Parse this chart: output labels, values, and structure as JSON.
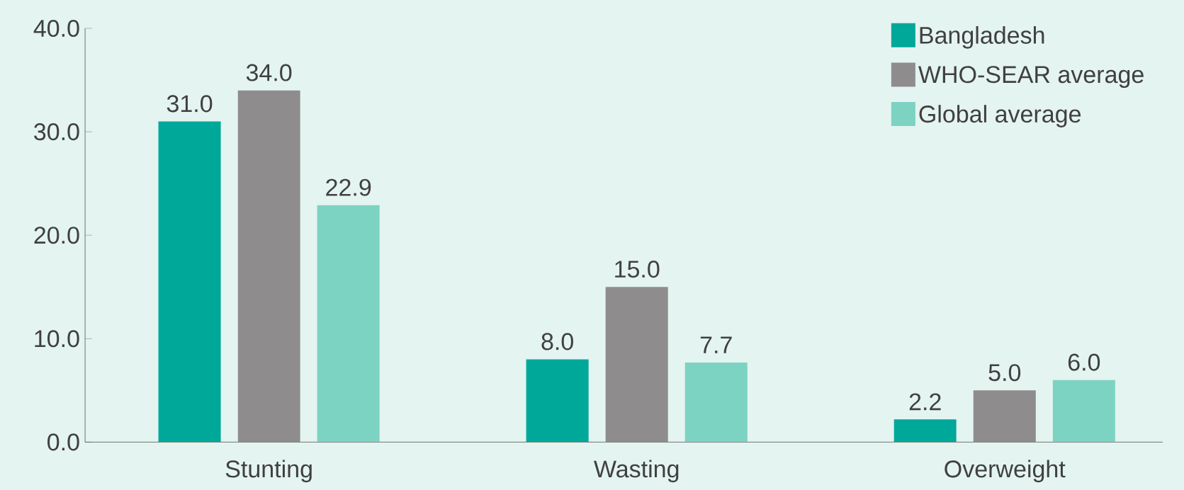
{
  "chart_data": {
    "type": "bar",
    "categories": [
      "Stunting",
      "Wasting",
      "Overweight"
    ],
    "series": [
      {
        "name": "Bangladesh",
        "color": "#00a89a",
        "values": [
          31.0,
          8.0,
          2.2
        ],
        "value_labels": [
          "31.0",
          "8.0",
          "2.2"
        ]
      },
      {
        "name": "WHO-SEAR average",
        "color": "#8e8c8d",
        "values": [
          34.0,
          15.0,
          5.0
        ],
        "value_labels": [
          "34.0",
          "15.0",
          "5.0"
        ]
      },
      {
        "name": "Global average",
        "color": "#7dd3c2",
        "values": [
          22.9,
          7.7,
          6.0
        ],
        "value_labels": [
          "22.9",
          "7.7",
          "6.0"
        ]
      }
    ],
    "ylim": [
      0,
      40
    ],
    "yticks": [
      {
        "value": 0,
        "label": "0.0"
      },
      {
        "value": 10,
        "label": "10.0"
      },
      {
        "value": 20,
        "label": "20.0"
      },
      {
        "value": 30,
        "label": "30.0"
      },
      {
        "value": 40,
        "label": "40.0"
      }
    ],
    "legend": "top right",
    "grid": false
  }
}
